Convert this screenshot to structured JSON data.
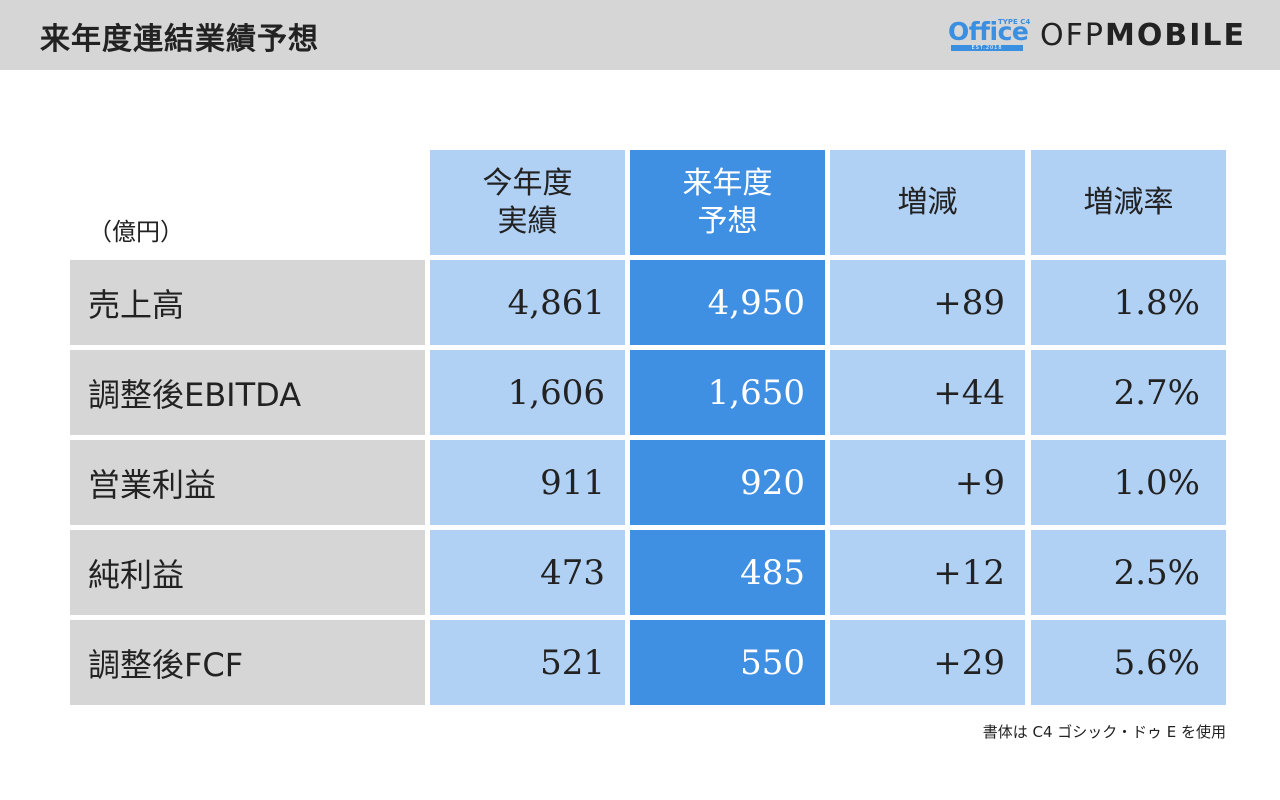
{
  "header": {
    "title": "来年度連結業績予想",
    "logo": {
      "main": "Office",
      "type": "TYPE C4",
      "est": "EST.2018"
    },
    "brand_light": "OFP",
    "brand_bold": "MOBILE"
  },
  "table": {
    "unit": "（億円）",
    "columns": [
      {
        "line1": "今年度",
        "line2": "実績"
      },
      {
        "line1": "来年度",
        "line2": "予想"
      },
      {
        "line1": "増減",
        "line2": ""
      },
      {
        "line1": "増減率",
        "line2": ""
      }
    ],
    "rows": [
      {
        "label": "売上高",
        "actual": "4,861",
        "forecast": "4,950",
        "change": "+89",
        "rate": "1.8%"
      },
      {
        "label": "調整後EBITDA",
        "actual": "1,606",
        "forecast": "1,650",
        "change": "+44",
        "rate": "2.7%"
      },
      {
        "label": "営業利益",
        "actual": "911",
        "forecast": "920",
        "change": "+9",
        "rate": "1.0%"
      },
      {
        "label": "純利益",
        "actual": "473",
        "forecast": "485",
        "change": "+12",
        "rate": "2.5%"
      },
      {
        "label": "調整後FCF",
        "actual": "521",
        "forecast": "550",
        "change": "+29",
        "rate": "5.6%"
      }
    ]
  },
  "footnote": "書体は C4  ゴシック・ドゥ  E を使用",
  "colors": {
    "header_bg": "#d6d6d6",
    "accent_light": "#b0d0f4",
    "accent_dark": "#3f8fe3",
    "label_bg": "#d6d6d6"
  }
}
